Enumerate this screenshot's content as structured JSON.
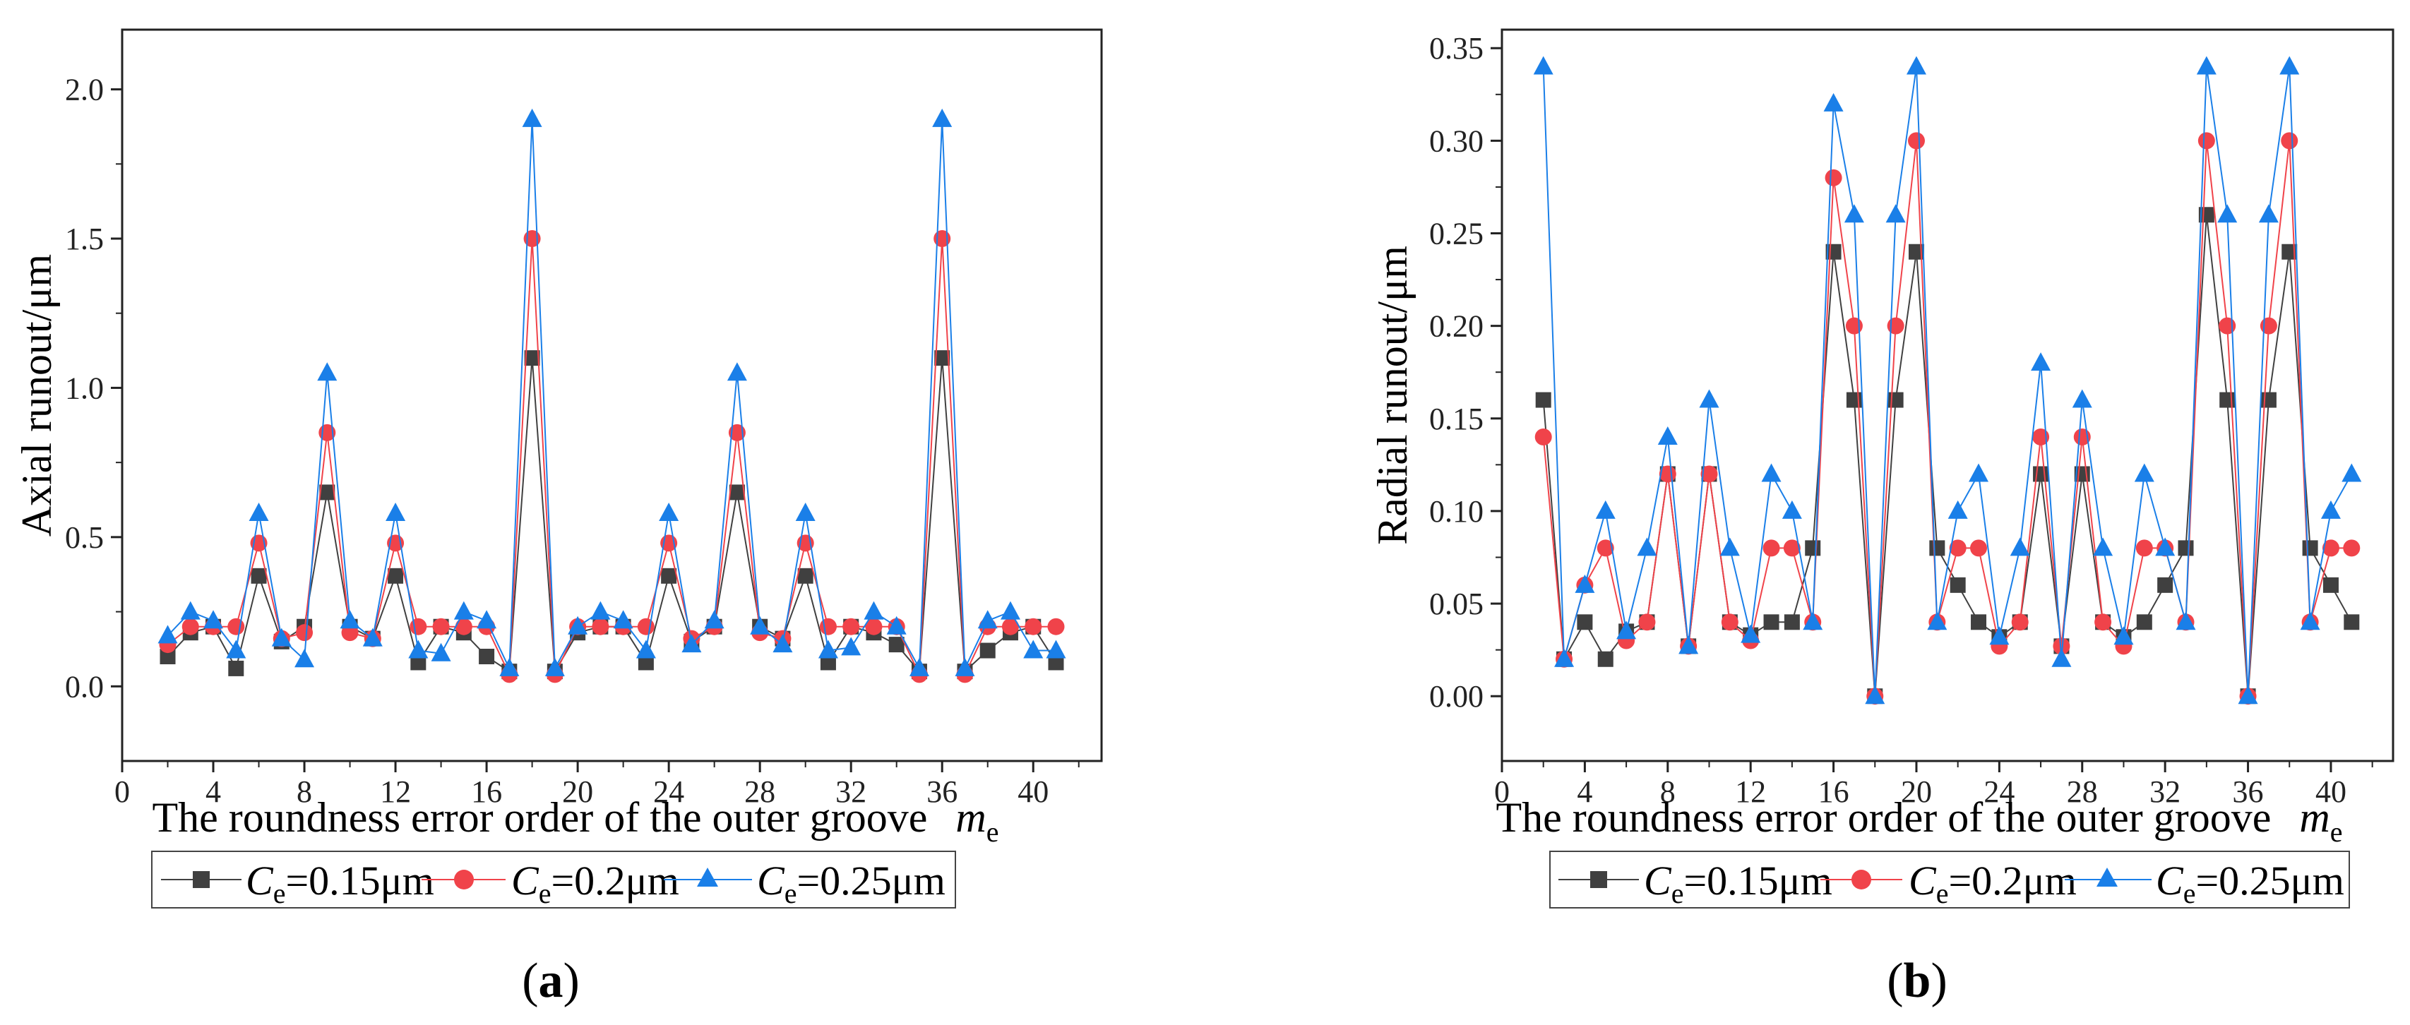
{
  "figure": {
    "panels": [
      {
        "caption_open": "(",
        "caption_letter": "a",
        "caption_close": ")",
        "xlabel": "The roundness error order of the outer groove",
        "xlabel_var": "m",
        "xlabel_sub": "e"
      },
      {
        "caption_open": "(",
        "caption_letter": "b",
        "caption_close": ")",
        "xlabel": "The roundness error order of the outer groove",
        "xlabel_var": "m",
        "xlabel_sub": "e"
      }
    ],
    "legend": [
      {
        "var": "C",
        "sub": "e",
        "text": "=0.15μm",
        "color": "#404040",
        "marker": "square"
      },
      {
        "var": "C",
        "sub": "e",
        "text": "=0.2μm",
        "color": "#f0434a",
        "marker": "circle"
      },
      {
        "var": "C",
        "sub": "e",
        "text": "=0.25μm",
        "color": "#1a7fe8",
        "marker": "triangle"
      }
    ]
  },
  "chart_data": [
    {
      "type": "line",
      "title": "",
      "xlabel": "The roundness error order of the outer groove me",
      "ylabel": "Axial runout/μm",
      "xlim": [
        0,
        43
      ],
      "ylim": [
        -0.25,
        2.2
      ],
      "xticks": [
        0,
        4,
        8,
        12,
        16,
        20,
        24,
        28,
        32,
        36,
        40
      ],
      "xticks_minor": [
        2,
        6,
        10,
        14,
        18,
        22,
        26,
        30,
        34,
        38,
        42
      ],
      "yticks": [
        0.0,
        0.5,
        1.0,
        1.5,
        2.0
      ],
      "yticks_minor": [
        0.25,
        0.75,
        1.25,
        1.75
      ],
      "ytick_labels": [
        "0.0",
        "0.5",
        "1.0",
        "1.5",
        "2.0"
      ],
      "x": [
        2,
        3,
        4,
        5,
        6,
        7,
        8,
        9,
        10,
        11,
        12,
        13,
        14,
        15,
        16,
        17,
        18,
        19,
        20,
        21,
        22,
        23,
        24,
        25,
        26,
        27,
        28,
        29,
        30,
        31,
        32,
        33,
        34,
        35,
        36,
        37,
        38,
        39,
        40,
        41
      ],
      "series": [
        {
          "name": "Ce=0.15μm",
          "color": "#404040",
          "marker": "square",
          "values": [
            0.1,
            0.18,
            0.2,
            0.06,
            0.37,
            0.15,
            0.2,
            0.65,
            0.2,
            0.16,
            0.37,
            0.08,
            0.2,
            0.18,
            0.1,
            0.05,
            1.1,
            0.05,
            0.18,
            0.2,
            0.2,
            0.08,
            0.37,
            0.15,
            0.2,
            0.65,
            0.2,
            0.16,
            0.37,
            0.08,
            0.2,
            0.18,
            0.14,
            0.05,
            1.1,
            0.05,
            0.12,
            0.18,
            0.2,
            0.08
          ]
        },
        {
          "name": "Ce=0.2μm",
          "color": "#f0434a",
          "marker": "circle",
          "values": [
            0.14,
            0.2,
            0.2,
            0.2,
            0.48,
            0.16,
            0.18,
            0.85,
            0.18,
            0.16,
            0.48,
            0.2,
            0.2,
            0.2,
            0.2,
            0.04,
            1.5,
            0.04,
            0.2,
            0.2,
            0.2,
            0.2,
            0.48,
            0.16,
            0.2,
            0.85,
            0.18,
            0.16,
            0.48,
            0.2,
            0.2,
            0.2,
            0.2,
            0.04,
            1.5,
            0.04,
            0.2,
            0.2,
            0.2,
            0.2
          ]
        },
        {
          "name": "Ce=0.25μm",
          "color": "#1a7fe8",
          "marker": "triangle",
          "values": [
            0.17,
            0.25,
            0.22,
            0.12,
            0.58,
            0.16,
            0.09,
            1.05,
            0.22,
            0.16,
            0.58,
            0.12,
            0.11,
            0.25,
            0.22,
            0.06,
            1.9,
            0.06,
            0.2,
            0.25,
            0.22,
            0.12,
            0.58,
            0.14,
            0.22,
            1.05,
            0.2,
            0.14,
            0.58,
            0.12,
            0.13,
            0.25,
            0.2,
            0.06,
            1.9,
            0.06,
            0.22,
            0.25,
            0.12,
            0.12
          ]
        }
      ]
    },
    {
      "type": "line",
      "title": "",
      "xlabel": "The roundness error order of the outer groove me",
      "ylabel": "Radial runout/μm",
      "xlim": [
        0,
        43
      ],
      "ylim": [
        -0.035,
        0.36
      ],
      "xticks": [
        0,
        4,
        8,
        12,
        16,
        20,
        24,
        28,
        32,
        36,
        40
      ],
      "xticks_minor": [
        2,
        6,
        10,
        14,
        18,
        22,
        26,
        30,
        34,
        38,
        42
      ],
      "yticks": [
        0.0,
        0.05,
        0.1,
        0.15,
        0.2,
        0.25,
        0.3,
        0.35
      ],
      "yticks_minor": [
        0.025,
        0.075,
        0.125,
        0.175,
        0.225,
        0.275,
        0.325
      ],
      "ytick_labels": [
        "0.00",
        "0.05",
        "0.10",
        "0.15",
        "0.20",
        "0.25",
        "0.30",
        "0.35"
      ],
      "x": [
        2,
        3,
        4,
        5,
        6,
        7,
        8,
        9,
        10,
        11,
        12,
        13,
        14,
        15,
        16,
        17,
        18,
        19,
        20,
        21,
        22,
        23,
        24,
        25,
        26,
        27,
        28,
        29,
        30,
        31,
        32,
        33,
        34,
        35,
        36,
        37,
        38,
        39,
        40,
        41
      ],
      "series": [
        {
          "name": "Ce=0.15μm",
          "color": "#404040",
          "marker": "square",
          "values": [
            0.16,
            0.02,
            0.04,
            0.02,
            0.035,
            0.04,
            0.12,
            0.027,
            0.12,
            0.04,
            0.033,
            0.04,
            0.04,
            0.08,
            0.24,
            0.16,
            0.0,
            0.16,
            0.24,
            0.08,
            0.06,
            0.04,
            0.032,
            0.04,
            0.12,
            0.027,
            0.12,
            0.04,
            0.032,
            0.04,
            0.06,
            0.08,
            0.26,
            0.16,
            0.0,
            0.16,
            0.24,
            0.08,
            0.06,
            0.04
          ]
        },
        {
          "name": "Ce=0.2μm",
          "color": "#f0434a",
          "marker": "circle",
          "values": [
            0.14,
            0.02,
            0.06,
            0.08,
            0.03,
            0.04,
            0.12,
            0.027,
            0.12,
            0.04,
            0.03,
            0.08,
            0.08,
            0.04,
            0.28,
            0.2,
            0.0,
            0.2,
            0.3,
            0.04,
            0.08,
            0.08,
            0.027,
            0.04,
            0.14,
            0.027,
            0.14,
            0.04,
            0.027,
            0.08,
            0.08,
            0.04,
            0.3,
            0.2,
            0.0,
            0.2,
            0.3,
            0.04,
            0.08,
            0.08
          ]
        },
        {
          "name": "Ce=0.25μm",
          "color": "#1a7fe8",
          "marker": "triangle",
          "values": [
            0.34,
            0.02,
            0.06,
            0.1,
            0.035,
            0.08,
            0.14,
            0.027,
            0.16,
            0.08,
            0.033,
            0.12,
            0.1,
            0.04,
            0.32,
            0.26,
            0.0,
            0.26,
            0.34,
            0.04,
            0.1,
            0.12,
            0.032,
            0.08,
            0.18,
            0.02,
            0.16,
            0.08,
            0.032,
            0.12,
            0.08,
            0.04,
            0.34,
            0.26,
            0.0,
            0.26,
            0.34,
            0.04,
            0.1,
            0.12
          ]
        }
      ]
    }
  ]
}
